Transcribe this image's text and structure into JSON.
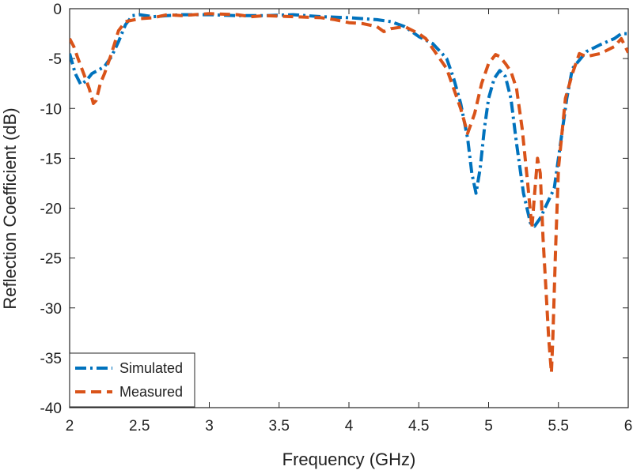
{
  "chart_data": {
    "type": "line",
    "title": "",
    "xlabel": "Frequency (GHz)",
    "ylabel": "Reflection Coefficient (dB)",
    "xlim": [
      2,
      6
    ],
    "ylim": [
      -40,
      0
    ],
    "xticks": [
      2,
      2.5,
      3,
      3.5,
      4,
      4.5,
      5,
      5.5,
      6
    ],
    "yticks": [
      0,
      -5,
      -10,
      -15,
      -20,
      -25,
      -30,
      -35,
      -40
    ],
    "xtick_labels": [
      "2",
      "2.5",
      "3",
      "3.5",
      "4",
      "4.5",
      "5",
      "5.5",
      "6"
    ],
    "ytick_labels": [
      "0",
      "-5",
      "-10",
      "-15",
      "-20",
      "-25",
      "-30",
      "-35",
      "-40"
    ],
    "grid": false,
    "legend_position": "bottom-left",
    "series": [
      {
        "name": "Simulated",
        "color": "#0072BD",
        "line_style": "dash-dot",
        "x": [
          2.0,
          2.04,
          2.08,
          2.12,
          2.16,
          2.2,
          2.25,
          2.3,
          2.35,
          2.4,
          2.45,
          2.5,
          2.6,
          2.7,
          2.8,
          3.0,
          3.2,
          3.4,
          3.6,
          3.8,
          4.0,
          4.1,
          4.2,
          4.3,
          4.4,
          4.5,
          4.6,
          4.7,
          4.75,
          4.8,
          4.85,
          4.88,
          4.91,
          4.94,
          4.97,
          5.0,
          5.04,
          5.08,
          5.12,
          5.16,
          5.2,
          5.25,
          5.3,
          5.33,
          5.37,
          5.42,
          5.47,
          5.52,
          5.56,
          5.6,
          5.7,
          5.8,
          5.9,
          5.95,
          6.0
        ],
        "y": [
          -4.5,
          -6.5,
          -7.6,
          -7.2,
          -6.5,
          -6.2,
          -5.8,
          -4.8,
          -3.3,
          -1.6,
          -0.7,
          -0.6,
          -0.8,
          -0.7,
          -0.6,
          -0.6,
          -0.7,
          -0.7,
          -0.6,
          -0.8,
          -0.9,
          -1.0,
          -1.1,
          -1.3,
          -1.8,
          -2.8,
          -3.5,
          -5.0,
          -7.0,
          -9.5,
          -13.0,
          -16.5,
          -18.5,
          -16.0,
          -12.0,
          -9.0,
          -7.0,
          -6.2,
          -6.8,
          -9.0,
          -13.5,
          -18.5,
          -21.5,
          -21.8,
          -21.0,
          -19.5,
          -18.0,
          -13.0,
          -9.0,
          -6.0,
          -4.3,
          -3.6,
          -3.0,
          -2.5,
          -2.5
        ]
      },
      {
        "name": "Measured",
        "color": "#D95319",
        "line_style": "dashed",
        "x": [
          2.0,
          2.03,
          2.06,
          2.1,
          2.14,
          2.17,
          2.19,
          2.22,
          2.25,
          2.3,
          2.35,
          2.4,
          2.5,
          2.6,
          2.7,
          2.8,
          3.0,
          3.2,
          3.3,
          3.4,
          3.6,
          3.8,
          3.9,
          4.0,
          4.1,
          4.2,
          4.25,
          4.3,
          4.4,
          4.5,
          4.55,
          4.6,
          4.7,
          4.8,
          4.85,
          4.9,
          4.95,
          5.0,
          5.05,
          5.08,
          5.12,
          5.16,
          5.2,
          5.24,
          5.28,
          5.31,
          5.33,
          5.35,
          5.37,
          5.39,
          5.41,
          5.43,
          5.45,
          5.46,
          5.48,
          5.5,
          5.55,
          5.6,
          5.65,
          5.7,
          5.8,
          5.9,
          5.95,
          6.0
        ],
        "y": [
          -3.0,
          -3.8,
          -5.0,
          -6.5,
          -8.0,
          -9.5,
          -9.2,
          -7.5,
          -6.5,
          -4.5,
          -2.2,
          -1.3,
          -1.0,
          -0.9,
          -0.6,
          -0.7,
          -0.5,
          -0.6,
          -0.8,
          -0.7,
          -0.8,
          -0.9,
          -1.1,
          -1.4,
          -1.5,
          -1.8,
          -2.3,
          -2.0,
          -1.8,
          -2.5,
          -3.0,
          -4.0,
          -6.0,
          -10.0,
          -12.5,
          -10.5,
          -7.5,
          -5.5,
          -4.6,
          -4.8,
          -5.5,
          -6.3,
          -8.0,
          -12.0,
          -17.5,
          -22.0,
          -18.5,
          -15.0,
          -16.5,
          -23.0,
          -28.0,
          -33.0,
          -36.5,
          -33.0,
          -24.0,
          -16.0,
          -9.0,
          -6.5,
          -4.5,
          -4.8,
          -4.5,
          -3.8,
          -3.0,
          -4.4
        ]
      }
    ]
  }
}
